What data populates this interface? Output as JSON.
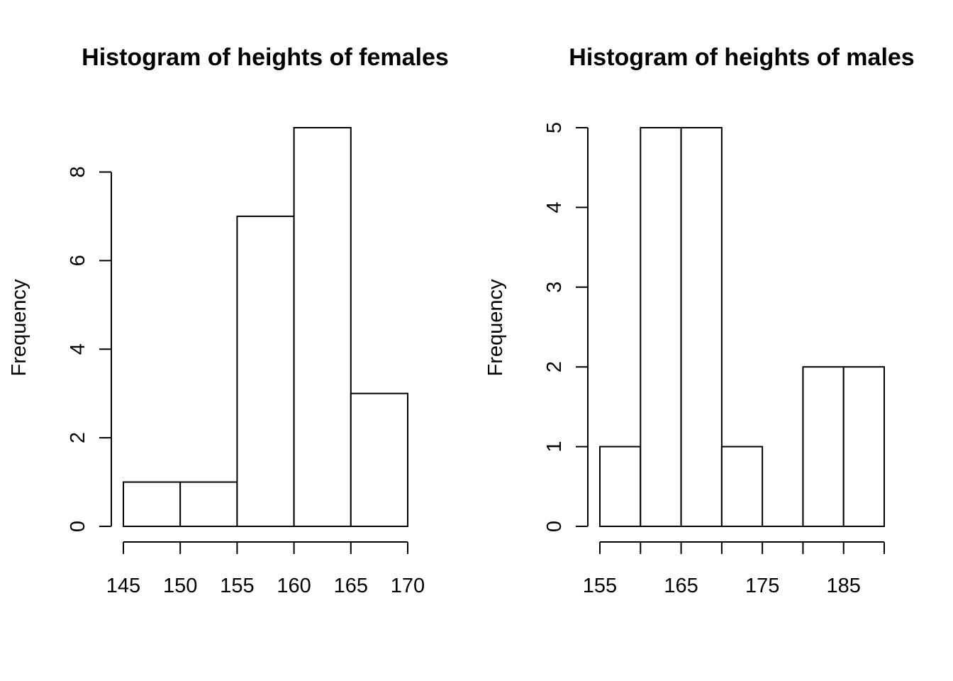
{
  "chart_data": [
    {
      "type": "bar",
      "title": "Histogram of heights of females",
      "xlabel": "",
      "ylabel": "Frequency",
      "bin_edges": [
        145,
        150,
        155,
        160,
        165,
        170
      ],
      "values": [
        1,
        1,
        7,
        9,
        3
      ],
      "x_ticks": [
        145,
        150,
        155,
        160,
        165,
        170
      ],
      "x_tick_labels": [
        "145",
        "150",
        "155",
        "160",
        "165",
        "170"
      ],
      "y_ticks": [
        0,
        2,
        4,
        6,
        8
      ],
      "y_tick_labels": [
        "0",
        "2",
        "4",
        "6",
        "8"
      ],
      "xlim": [
        145,
        170
      ],
      "ylim": [
        0,
        9
      ],
      "grid": false
    },
    {
      "type": "bar",
      "title": "Histogram of heights of males",
      "xlabel": "",
      "ylabel": "Frequency",
      "bin_edges": [
        155,
        160,
        165,
        170,
        175,
        180,
        185,
        190
      ],
      "values": [
        1,
        5,
        5,
        1,
        0,
        2,
        2
      ],
      "x_ticks": [
        155,
        160,
        165,
        170,
        175,
        180,
        185,
        190
      ],
      "x_tick_labels": [
        "155",
        "",
        "165",
        "",
        "175",
        "",
        "185",
        ""
      ],
      "y_ticks": [
        0,
        1,
        2,
        3,
        4,
        5
      ],
      "y_tick_labels": [
        "0",
        "1",
        "2",
        "3",
        "4",
        "5"
      ],
      "xlim": [
        155,
        190
      ],
      "ylim": [
        0,
        5
      ],
      "grid": false
    }
  ]
}
